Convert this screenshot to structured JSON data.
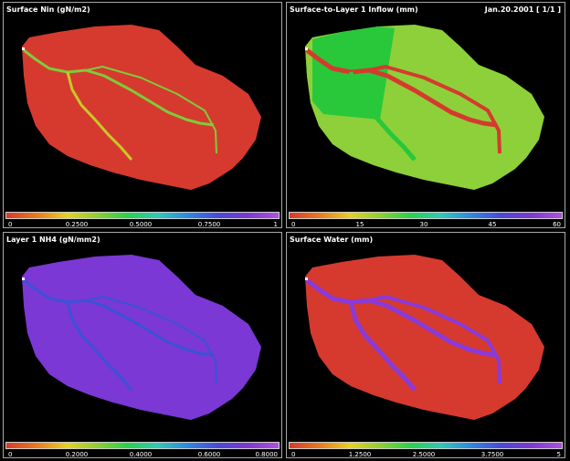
{
  "colorbar": {
    "gradient": [
      "#d93a2a",
      "#e87a20",
      "#e8d120",
      "#8ed030",
      "#28d24a",
      "#30c8b8",
      "#2e88e0",
      "#4a48d8",
      "#7e38d0",
      "#b050e0"
    ]
  },
  "panels": [
    {
      "title": "Surface Nin (gN/m2)",
      "date": "",
      "ticks": [
        "0",
        "0.2500",
        "0.5000",
        "0.7500",
        "1"
      ],
      "base_color": "#d63a2e",
      "channel_color": "#7ecb3a",
      "channel_color2": "#c8c828"
    },
    {
      "title": "Surface-to-Layer 1 Inflow (mm)",
      "date": "Jan.20.2001  [ 1/1 ]",
      "ticks": [
        "0",
        "15",
        "30",
        "45",
        "60"
      ],
      "base_color": "#8ed03a",
      "channel_color": "#d53a2e",
      "channel_color2": "#28c83a"
    },
    {
      "title": "Layer 1 NH4 (gN/mm2)",
      "date": "",
      "ticks": [
        "0",
        "0.2000",
        "0.4000",
        "0.6000",
        "0.8000"
      ],
      "base_color": "#7b38d4",
      "channel_color": "#3a52d8",
      "channel_color2": "#3a52d8"
    },
    {
      "title": "Surface Water (mm)",
      "date": "",
      "ticks": [
        "0",
        "1.2500",
        "2.5000",
        "3.7500",
        "5"
      ],
      "base_color": "#d63a2e",
      "channel_color": "#8a3ad8",
      "channel_color2": "#8a3ad8"
    }
  ]
}
